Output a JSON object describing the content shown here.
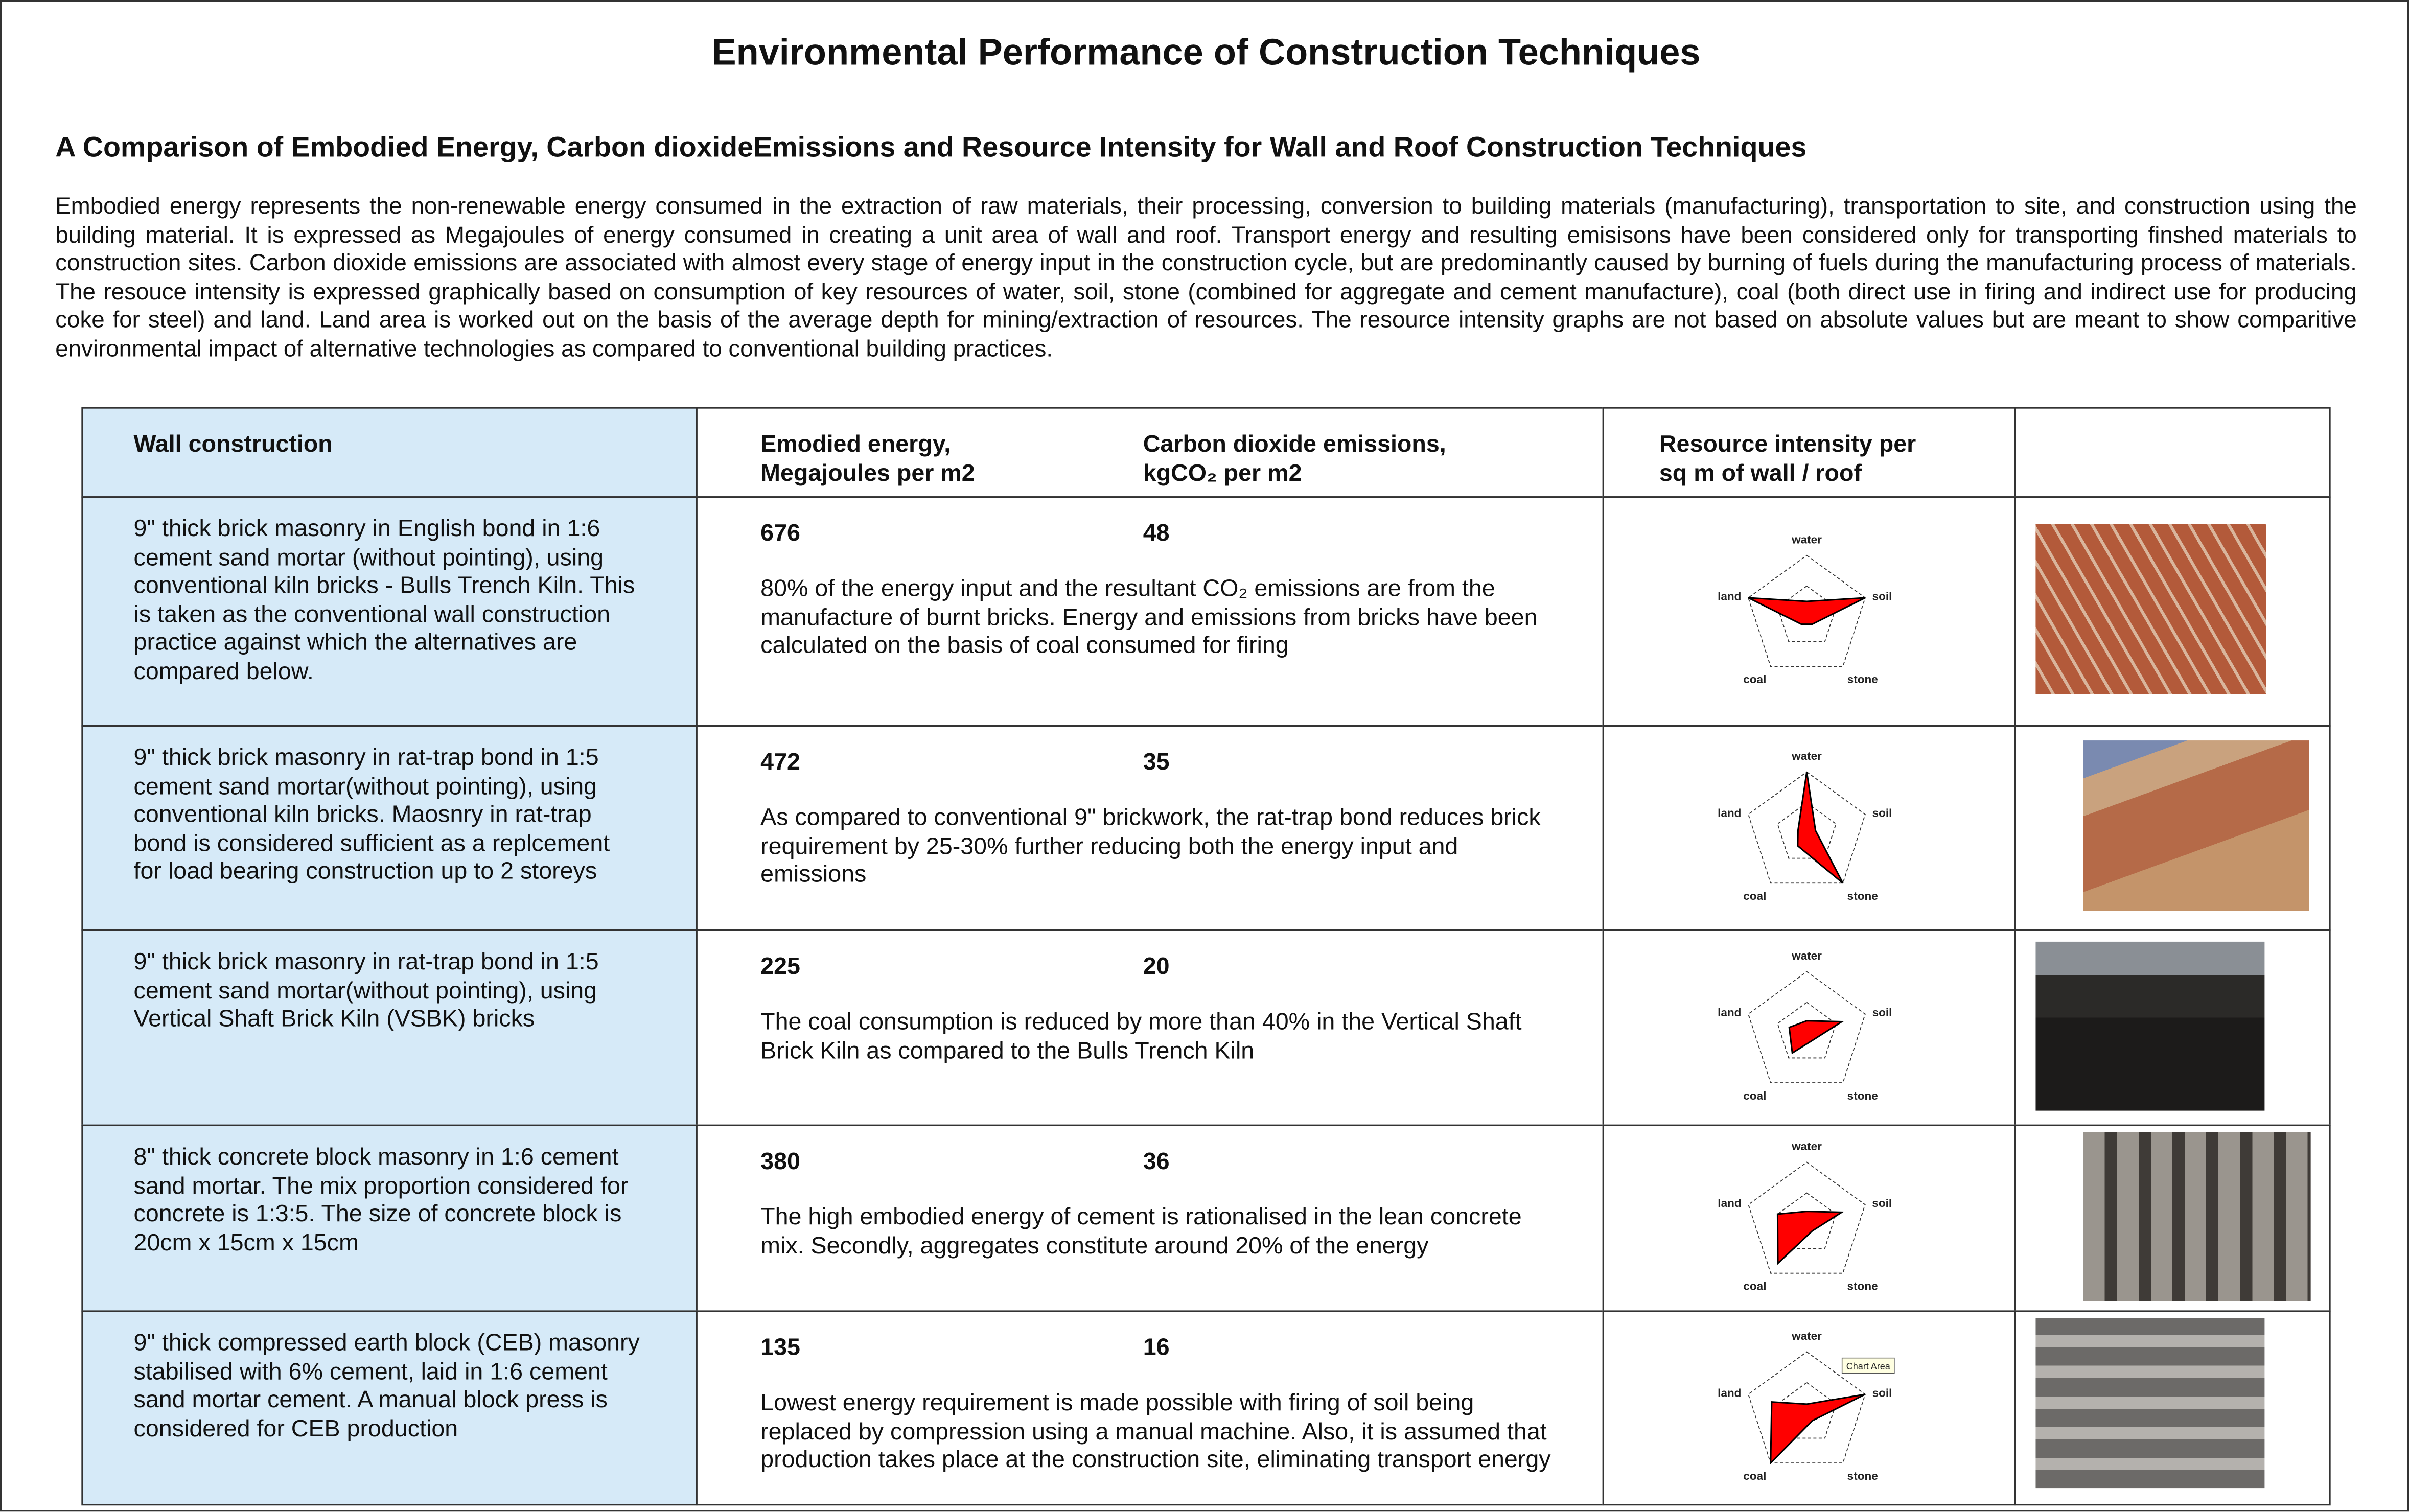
{
  "title": "Environmental Performance of Construction Techniques",
  "subtitle": "A Comparison of Embodied Energy, Carbon dioxideEmissions and Resource Intensity for Wall and Roof Construction Techniques",
  "intro": "Embodied energy represents the non-renewable energy consumed in the extraction of raw materials, their processing, conversion to building materials (manufacturing), transportation to site, and construction using the building material. It is expressed as Megajoules of energy consumed in creating a unit area of wall and roof. Transport energy and resulting emisisons have been considered only for transporting finshed materials to construction sites. Carbon dioxide emissions are associated with almost every stage of energy input in the construction cycle, but are predominantly caused by burning of fuels during the manufacturing process of materials. The resouce intensity is expressed graphically based on consumption of key resources of water, soil, stone (combined for aggregate and cement manufacture), coal (both direct use in firing and indirect use for producing coke for steel) and land. Land area is worked out on the basis of the average depth for mining/extraction of resources. The resource intensity graphs are not based on absolute values but are meant to show comparitive environmental impact of alternative technologies as compared to conventional building practices.",
  "table": {
    "headers": [
      "Wall construction",
      "Emodied energy,\nMegajoules per m2",
      "Carbon dioxide emissions,\nkgCO₂ per m2",
      "Resource intensity per\nsq m of wall / roof"
    ],
    "rows": [
      {
        "description": "9\" thick brick masonry in English bond in 1:6 cement sand mortar (without pointing), using conventional kiln bricks - Bulls Trench Kiln. This is taken as the conventional wall construction practice against which the alternatives are compared below.",
        "energy": "676",
        "co2": "48",
        "note": "80% of the energy input and the resultant CO₂ emissions are from the manufacture of burnt bricks. Energy and emissions from bricks have been calculated on the basis of coal consumed for firing",
        "resources": [
          0.5,
          2,
          0.3,
          0.3,
          2
        ]
      },
      {
        "description": "9\" thick brick masonry in rat-trap bond in 1:5 cement sand mortar(without pointing), using conventional kiln bricks. Maosnry in rat-trap bond is considered sufficient as a replcement for load bearing construction up to 2 storeys",
        "energy": "472",
        "co2": "35",
        "note": "As compared to conventional 9\" brickwork, the rat-trap bond reduces brick requirement by 25-30% further reducing both the energy input and emissions",
        "resources": [
          2,
          0.3,
          2,
          0.5,
          0.3
        ]
      },
      {
        "description": "9\" thick brick masonry in rat-trap bond in 1:5 cement sand mortar(without pointing), using Vertical Shaft Brick Kiln (VSBK) bricks",
        "energy": "225",
        "co2": "20",
        "note": "The coal consumption is reduced by more than 40% in the Vertical Shaft Brick Kiln as compared to the Bulls Trench Kiln",
        "resources": [
          0.4,
          1.2,
          0.3,
          0.8,
          0.6
        ]
      },
      {
        "description": "8\" thick concrete block masonry in 1:6 cement sand mortar. The mix proportion considered for concrete is 1:3:5. The size of concrete block is 20cm x 15cm x 15cm",
        "energy": "380",
        "co2": "36",
        "note": "The high embodied energy of cement is rationalised in the lean concrete mix. Secondly, aggregates constitute around 20% of the energy",
        "resources": [
          0.4,
          1.2,
          0.3,
          1.6,
          1
        ]
      },
      {
        "description": "9\" thick compressed earth block (CEB) masonry stabilised with 6% cement, laid in 1:6 cement sand mortar cement. A manual block press is considered for CEB production",
        "energy": "135",
        "co2": "16",
        "note": "Lowest energy requirement is made possible with firing of soil being replaced by compression using a manual machine. Also, it is assumed that production takes place at the construction site, eliminating transport energy",
        "resources": [
          0.3,
          2,
          0.3,
          2,
          1.2
        ]
      }
    ]
  },
  "radar": {
    "axes": [
      "water",
      "soil",
      "stone",
      "coal",
      "land"
    ],
    "max": 2,
    "rings": [
      1,
      2
    ],
    "color": "#ff0000"
  },
  "tooltip": "Chart Area"
}
